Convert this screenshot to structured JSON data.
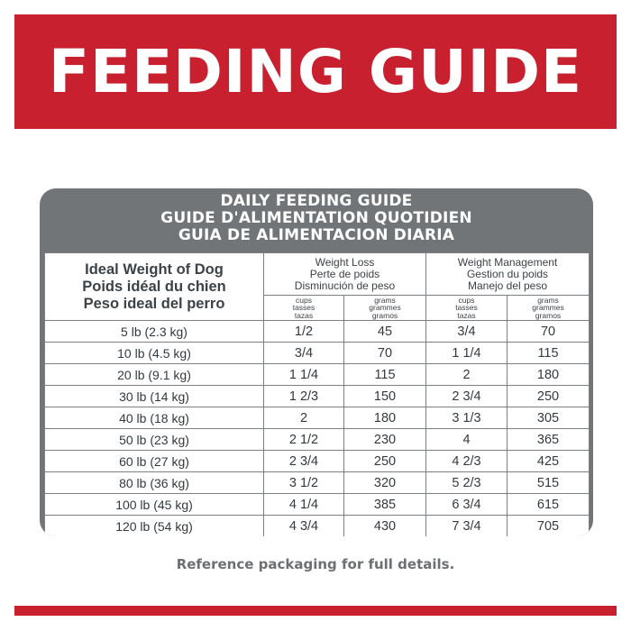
{
  "banner": {
    "title": "FEEDING GUIDE"
  },
  "card": {
    "title_lines": [
      "DAILY FEEDING GUIDE",
      "GUIDE D'ALIMENTATION QUOTIDIEN",
      "GUIA DE ALIMENTACION DIARIA"
    ],
    "ideal_weight_header": [
      "Ideal Weight of Dog",
      "Poids idéal du chien",
      "Peso ideal del perro"
    ],
    "groups": [
      {
        "lines": [
          "Weight Loss",
          "Perte de poids",
          "Disminución de peso"
        ]
      },
      {
        "lines": [
          "Weight Management",
          "Gestion du poids",
          "Manejo del peso"
        ]
      }
    ],
    "units": {
      "cups": [
        "cups",
        "tasses",
        "tazas"
      ],
      "grams": [
        "grams",
        "grammes",
        "gramos"
      ]
    },
    "rows": [
      {
        "weight": "5 lb (2.3 kg)",
        "loss_cups": "1/2",
        "loss_grams": "45",
        "mgmt_cups": "3/4",
        "mgmt_grams": "70"
      },
      {
        "weight": "10 lb (4.5 kg)",
        "loss_cups": "3/4",
        "loss_grams": "70",
        "mgmt_cups": "1 1/4",
        "mgmt_grams": "115"
      },
      {
        "weight": "20 lb (9.1 kg)",
        "loss_cups": "1 1/4",
        "loss_grams": "115",
        "mgmt_cups": "2",
        "mgmt_grams": "180"
      },
      {
        "weight": "30 lb (14 kg)",
        "loss_cups": "1 2/3",
        "loss_grams": "150",
        "mgmt_cups": "2 3/4",
        "mgmt_grams": "250"
      },
      {
        "weight": "40 lb (18 kg)",
        "loss_cups": "2",
        "loss_grams": "180",
        "mgmt_cups": "3 1/3",
        "mgmt_grams": "305"
      },
      {
        "weight": "50 lb (23 kg)",
        "loss_cups": "2 1/2",
        "loss_grams": "230",
        "mgmt_cups": "4",
        "mgmt_grams": "365"
      },
      {
        "weight": "60 lb (27 kg)",
        "loss_cups": "2 3/4",
        "loss_grams": "250",
        "mgmt_cups": "4 2/3",
        "mgmt_grams": "425"
      },
      {
        "weight": "80 lb (36 kg)",
        "loss_cups": "3 1/2",
        "loss_grams": "320",
        "mgmt_cups": "5 2/3",
        "mgmt_grams": "515"
      },
      {
        "weight": "100 lb (45 kg)",
        "loss_cups": "4 1/4",
        "loss_grams": "385",
        "mgmt_cups": "6 3/4",
        "mgmt_grams": "615"
      },
      {
        "weight": "120 lb (54 kg)",
        "loss_cups": "4 3/4",
        "loss_grams": "430",
        "mgmt_cups": "7 3/4",
        "mgmt_grams": "705"
      }
    ]
  },
  "footer": {
    "note": "Reference packaging for full details."
  },
  "colors": {
    "brand_red": "#c8202e",
    "card_gray": "#717577"
  }
}
